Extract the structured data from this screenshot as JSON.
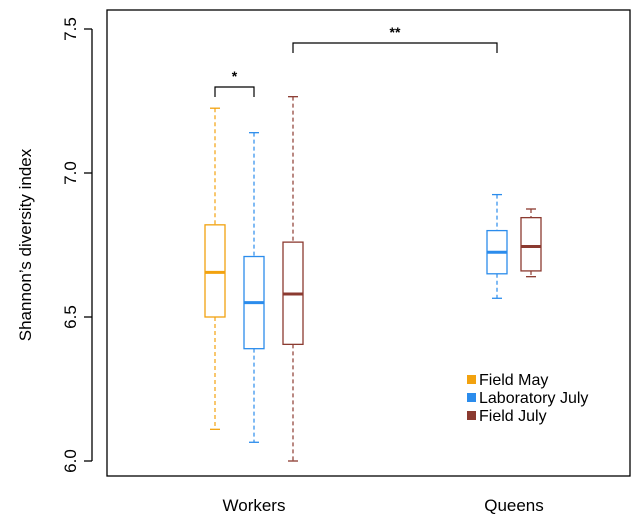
{
  "chart_data": {
    "type": "box",
    "title": "",
    "xlabel": "",
    "ylabel": "Shannon’s diversity index",
    "ylim": [
      6.0,
      7.5
    ],
    "yticks": [
      "6.0",
      "6.5",
      "7.0",
      "7.5"
    ],
    "categories": [
      "Workers",
      "Queens"
    ],
    "grid": false,
    "legend_placement": "bottom-right",
    "series": [
      {
        "name": "Field May",
        "color": "#F2A20F",
        "boxes": [
          {
            "category": "Workers",
            "min": 6.11,
            "q1": 6.5,
            "median": 6.655,
            "q3": 6.82,
            "max": 7.225
          }
        ]
      },
      {
        "name": "Laboratory July",
        "color": "#2B8CEC",
        "boxes": [
          {
            "category": "Workers",
            "min": 6.065,
            "q1": 6.39,
            "median": 6.55,
            "q3": 6.71,
            "max": 7.14
          },
          {
            "category": "Queens",
            "min": 6.565,
            "q1": 6.65,
            "median": 6.725,
            "q3": 6.8,
            "max": 6.925
          }
        ]
      },
      {
        "name": "Field July",
        "color": "#8B3A30",
        "boxes": [
          {
            "category": "Workers",
            "min": 6.0,
            "q1": 6.405,
            "median": 6.58,
            "q3": 6.76,
            "max": 7.265
          },
          {
            "category": "Queens",
            "min": 6.64,
            "q1": 6.66,
            "median": 6.745,
            "q3": 6.845,
            "max": 6.875
          }
        ]
      }
    ],
    "significance": [
      {
        "label": "*",
        "from": "Workers / Field May",
        "to": "Workers / Laboratory July"
      },
      {
        "label": "**",
        "from": "Workers / Field July",
        "to": "Queens / Laboratory July"
      }
    ]
  }
}
